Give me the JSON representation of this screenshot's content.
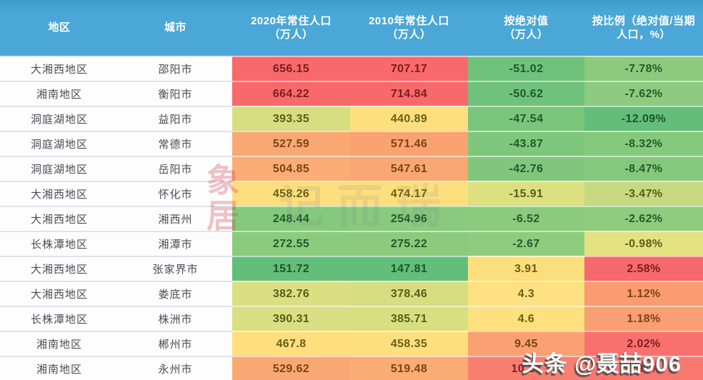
{
  "table": {
    "headers": [
      "地区",
      "城市",
      "2020年常住人口\n（万人）",
      "2010年常住人口\n（万人）",
      "按绝对值\n（万人）",
      "按比例（绝对值/当期\n人口，%）"
    ],
    "rows": [
      {
        "region": "大湘西地区",
        "city": "邵阳市",
        "values": [
          {
            "v": "656.15",
            "bg": "#F8696B",
            "fg": "#7B1D21"
          },
          {
            "v": "707.17",
            "bg": "#F8696B",
            "fg": "#7B1D21"
          },
          {
            "v": "-51.02",
            "bg": "#6FC17B",
            "fg": "#1F5A2B"
          },
          {
            "v": "-7.78%",
            "bg": "#8CCB7E",
            "fg": "#235C2B"
          }
        ]
      },
      {
        "region": "湘南地区",
        "city": "衡阳市",
        "values": [
          {
            "v": "664.22",
            "bg": "#F8696B",
            "fg": "#7B1D21"
          },
          {
            "v": "714.84",
            "bg": "#F8696B",
            "fg": "#7B1D21"
          },
          {
            "v": "-50.62",
            "bg": "#70C17B",
            "fg": "#1F5A2B"
          },
          {
            "v": "-7.62%",
            "bg": "#8DCB7E",
            "fg": "#235C2B"
          }
        ]
      },
      {
        "region": "洞庭湖地区",
        "city": "益阳市",
        "values": [
          {
            "v": "393.35",
            "bg": "#D7DE81",
            "fg": "#555F18"
          },
          {
            "v": "440.89",
            "bg": "#FDE07D",
            "fg": "#6B5F15"
          },
          {
            "v": "-47.54",
            "bg": "#7AC57C",
            "fg": "#1F5A2B"
          },
          {
            "v": "-12.09%",
            "bg": "#63BE7B",
            "fg": "#1C5628"
          }
        ]
      },
      {
        "region": "洞庭湖地区",
        "city": "常德市",
        "values": [
          {
            "v": "527.59",
            "bg": "#FAA873",
            "fg": "#7B4413"
          },
          {
            "v": "571.46",
            "bg": "#FAA371",
            "fg": "#7B4413"
          },
          {
            "v": "-43.87",
            "bg": "#7FC77D",
            "fg": "#1F5A2B"
          },
          {
            "v": "-8.32%",
            "bg": "#85C97D",
            "fg": "#235C2B"
          }
        ]
      },
      {
        "region": "洞庭湖地区",
        "city": "岳阳市",
        "values": [
          {
            "v": "504.85",
            "bg": "#FBAD75",
            "fg": "#7B4413"
          },
          {
            "v": "547.61",
            "bg": "#FAA873",
            "fg": "#7B4413"
          },
          {
            "v": "-42.76",
            "bg": "#80C77D",
            "fg": "#1F5A2B"
          },
          {
            "v": "-8.47%",
            "bg": "#84C87D",
            "fg": "#235C2B"
          }
        ]
      },
      {
        "region": "大湘西地区",
        "city": "怀化市",
        "values": [
          {
            "v": "458.26",
            "bg": "#FEDE7D",
            "fg": "#6B5F15"
          },
          {
            "v": "474.17",
            "bg": "#FEDF7E",
            "fg": "#6B5F15"
          },
          {
            "v": "-15.91",
            "bg": "#DCE081",
            "fg": "#555F18"
          },
          {
            "v": "-3.47%",
            "bg": "#C6D980",
            "fg": "#555F18"
          }
        ]
      },
      {
        "region": "大湘西地区",
        "city": "湘西州",
        "values": [
          {
            "v": "248.44",
            "bg": "#85C97D",
            "fg": "#1F5A2B"
          },
          {
            "v": "254.96",
            "bg": "#88CA7E",
            "fg": "#1F5A2B"
          },
          {
            "v": "-6.52",
            "bg": "#8BCB7E",
            "fg": "#235C2B"
          },
          {
            "v": "-2.62%",
            "bg": "#90CC7E",
            "fg": "#235C2B"
          }
        ]
      },
      {
        "region": "长株潭地区",
        "city": "湘潭市",
        "values": [
          {
            "v": "272.55",
            "bg": "#8BCB7E",
            "fg": "#1F5A2B"
          },
          {
            "v": "275.22",
            "bg": "#8CCB7E",
            "fg": "#1F5A2B"
          },
          {
            "v": "-2.67",
            "bg": "#8ECC7E",
            "fg": "#235C2B"
          },
          {
            "v": "-0.98%",
            "bg": "#E3E182",
            "fg": "#5C5E18"
          }
        ]
      },
      {
        "region": "大湘西地区",
        "city": "张家界市",
        "values": [
          {
            "v": "151.72",
            "bg": "#63BE7B",
            "fg": "#1C5628"
          },
          {
            "v": "147.81",
            "bg": "#63BE7B",
            "fg": "#1C5628"
          },
          {
            "v": "3.91",
            "bg": "#FBDF7C",
            "fg": "#6B5F15"
          },
          {
            "v": "2.58%",
            "bg": "#F6696C",
            "fg": "#7B1D21"
          }
        ]
      },
      {
        "region": "大湘西地区",
        "city": "娄底市",
        "values": [
          {
            "v": "382.76",
            "bg": "#DAE082",
            "fg": "#555F18"
          },
          {
            "v": "378.46",
            "bg": "#D6DE81",
            "fg": "#555F18"
          },
          {
            "v": "4.3",
            "bg": "#FEE180",
            "fg": "#6B5F15"
          },
          {
            "v": "1.12%",
            "bg": "#FA9B72",
            "fg": "#7B4413"
          }
        ]
      },
      {
        "region": "长株潭地区",
        "city": "株洲市",
        "values": [
          {
            "v": "390.31",
            "bg": "#D9DF82",
            "fg": "#555F18"
          },
          {
            "v": "385.71",
            "bg": "#D8DF81",
            "fg": "#555F18"
          },
          {
            "v": "4.6",
            "bg": "#FEE07F",
            "fg": "#6B5F15"
          },
          {
            "v": "1.18%",
            "bg": "#FA9E73",
            "fg": "#7B4413"
          }
        ]
      },
      {
        "region": "湘南地区",
        "city": "郴州市",
        "values": [
          {
            "v": "467.8",
            "bg": "#FEDE7D",
            "fg": "#6B5F15"
          },
          {
            "v": "458.35",
            "bg": "#FEDF7E",
            "fg": "#6B5F15"
          },
          {
            "v": "9.45",
            "bg": "#FAA173",
            "fg": "#7B4413"
          },
          {
            "v": "2.02%",
            "bg": "#F8716D",
            "fg": "#7B1D21"
          }
        ]
      },
      {
        "region": "湘南地区",
        "city": "永州市",
        "values": [
          {
            "v": "529.62",
            "bg": "#FAA873",
            "fg": "#7B4413"
          },
          {
            "v": "519.48",
            "bg": "#FBAB74",
            "fg": "#7B4413"
          },
          {
            "v": "10.14",
            "bg": "#F87F70",
            "fg": "#7B1D21"
          },
          {
            "v": "1.91%",
            "bg": "#F8776F",
            "fg": "#7B1D21"
          }
        ]
      }
    ]
  },
  "watermarks": {
    "credit": "头条 @聂喆906",
    "seal": "象居",
    "faint_chars": "记 而 瑞"
  },
  "colors": {
    "header_bg": "#4BA7D7",
    "header_text": "#FFFFFF",
    "scale_red": "#F8696B",
    "scale_yellow": "#FFE07F",
    "scale_green": "#63BE7B"
  }
}
